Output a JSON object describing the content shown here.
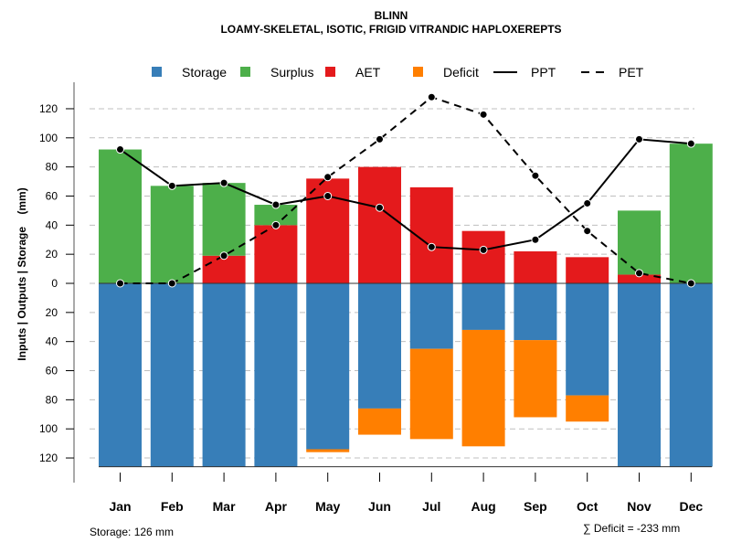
{
  "chart_data": {
    "type": "bar",
    "title": "BLINN",
    "subtitle": "LOAMY-SKELETAL, ISOTIC, FRIGID VITRANDIC HAPLOXEREPTS",
    "ylabel": "Inputs | Outputs | Storage    (mm)",
    "xlabel": "",
    "categories": [
      "Jan",
      "Feb",
      "Mar",
      "Apr",
      "May",
      "Jun",
      "Jul",
      "Aug",
      "Sep",
      "Oct",
      "Nov",
      "Dec"
    ],
    "ylim": [
      -126,
      130
    ],
    "yticks": [
      120,
      100,
      80,
      60,
      40,
      20,
      0,
      -20,
      -40,
      -60,
      -80,
      -100,
      -120
    ],
    "ytick_labels": [
      "120",
      "100",
      "80",
      "60",
      "40",
      "20",
      "0",
      "20",
      "40",
      "60",
      "80",
      "100",
      "120"
    ],
    "grid": true,
    "legend_position": "top",
    "legend": [
      {
        "name": "Storage",
        "kind": "box",
        "color": "#377EB8"
      },
      {
        "name": "Surplus",
        "kind": "box",
        "color": "#4DAF4A"
      },
      {
        "name": "AET",
        "kind": "box",
        "color": "#E41A1C"
      },
      {
        "name": "Deficit",
        "kind": "box",
        "color": "#FF7F00"
      },
      {
        "name": "PPT",
        "kind": "solid-line",
        "color": "#000000"
      },
      {
        "name": "PET",
        "kind": "dashed-line",
        "color": "#000000"
      }
    ],
    "series": [
      {
        "name": "AET",
        "color": "#E41A1C",
        "values": [
          0,
          0,
          19,
          40,
          72,
          80,
          66,
          36,
          22,
          18,
          6,
          0
        ]
      },
      {
        "name": "Surplus",
        "color": "#4DAF4A",
        "values": [
          92,
          67,
          50,
          14,
          0,
          0,
          0,
          0,
          0,
          0,
          44,
          96
        ]
      },
      {
        "name": "Storage",
        "color": "#377EB8",
        "values": [
          126,
          126,
          126,
          126,
          114,
          86,
          45,
          32,
          39,
          77,
          126,
          126
        ]
      },
      {
        "name": "Deficit",
        "color": "#FF7F00",
        "values": [
          0,
          0,
          0,
          0,
          2,
          18,
          62,
          80,
          53,
          18,
          0,
          0
        ]
      },
      {
        "name": "PPT",
        "color": "#000000",
        "values": [
          92,
          67,
          69,
          54,
          60,
          52,
          25,
          23,
          30,
          55,
          99,
          96
        ]
      },
      {
        "name": "PET",
        "color": "#000000",
        "values": [
          0,
          0,
          19,
          40,
          73,
          99,
          128,
          116,
          74,
          36,
          7,
          0
        ]
      }
    ],
    "annotations": {
      "storage_note": "Storage: 126 mm",
      "deficit_note": "∑ Deficit = -233 mm"
    }
  }
}
